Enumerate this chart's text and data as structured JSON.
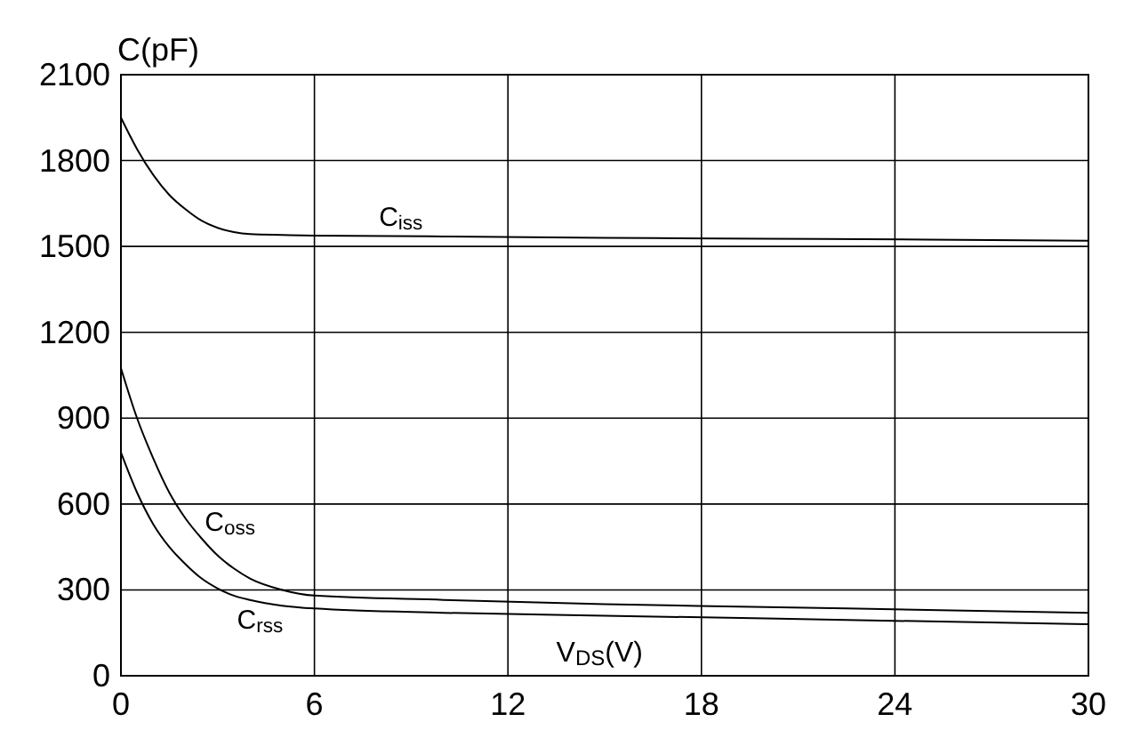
{
  "chart_data": {
    "type": "line",
    "xlabel": "V$_{DS}$(V)",
    "ylabel": "C(pF)",
    "x": [
      0,
      0.5,
      1,
      1.5,
      2,
      2.5,
      3,
      3.5,
      4,
      5,
      6,
      10,
      15,
      20,
      25,
      30
    ],
    "series": [
      {
        "name": "C$_{iss}$",
        "color": "#000000",
        "values": [
          1950,
          1840,
          1750,
          1680,
          1630,
          1590,
          1565,
          1550,
          1543,
          1540,
          1538,
          1535,
          1530,
          1527,
          1524,
          1520
        ]
      },
      {
        "name": "C$_{oss}$",
        "color": "#000000",
        "values": [
          1075,
          900,
          760,
          640,
          550,
          480,
          420,
          375,
          340,
          300,
          280,
          265,
          250,
          240,
          230,
          220
        ]
      },
      {
        "name": "C$_{rss}$",
        "color": "#000000",
        "values": [
          780,
          640,
          530,
          450,
          390,
          340,
          305,
          280,
          265,
          245,
          235,
          220,
          210,
          200,
          190,
          180
        ]
      }
    ],
    "xlim": [
      0,
      30
    ],
    "xticks": [
      0,
      6,
      12,
      18,
      24,
      30
    ],
    "ylim": [
      0,
      2100
    ],
    "yticks": [
      0,
      300,
      600,
      900,
      1200,
      1500,
      1800,
      2100
    ],
    "grid": true,
    "marker": "none",
    "line_style": "solid"
  }
}
